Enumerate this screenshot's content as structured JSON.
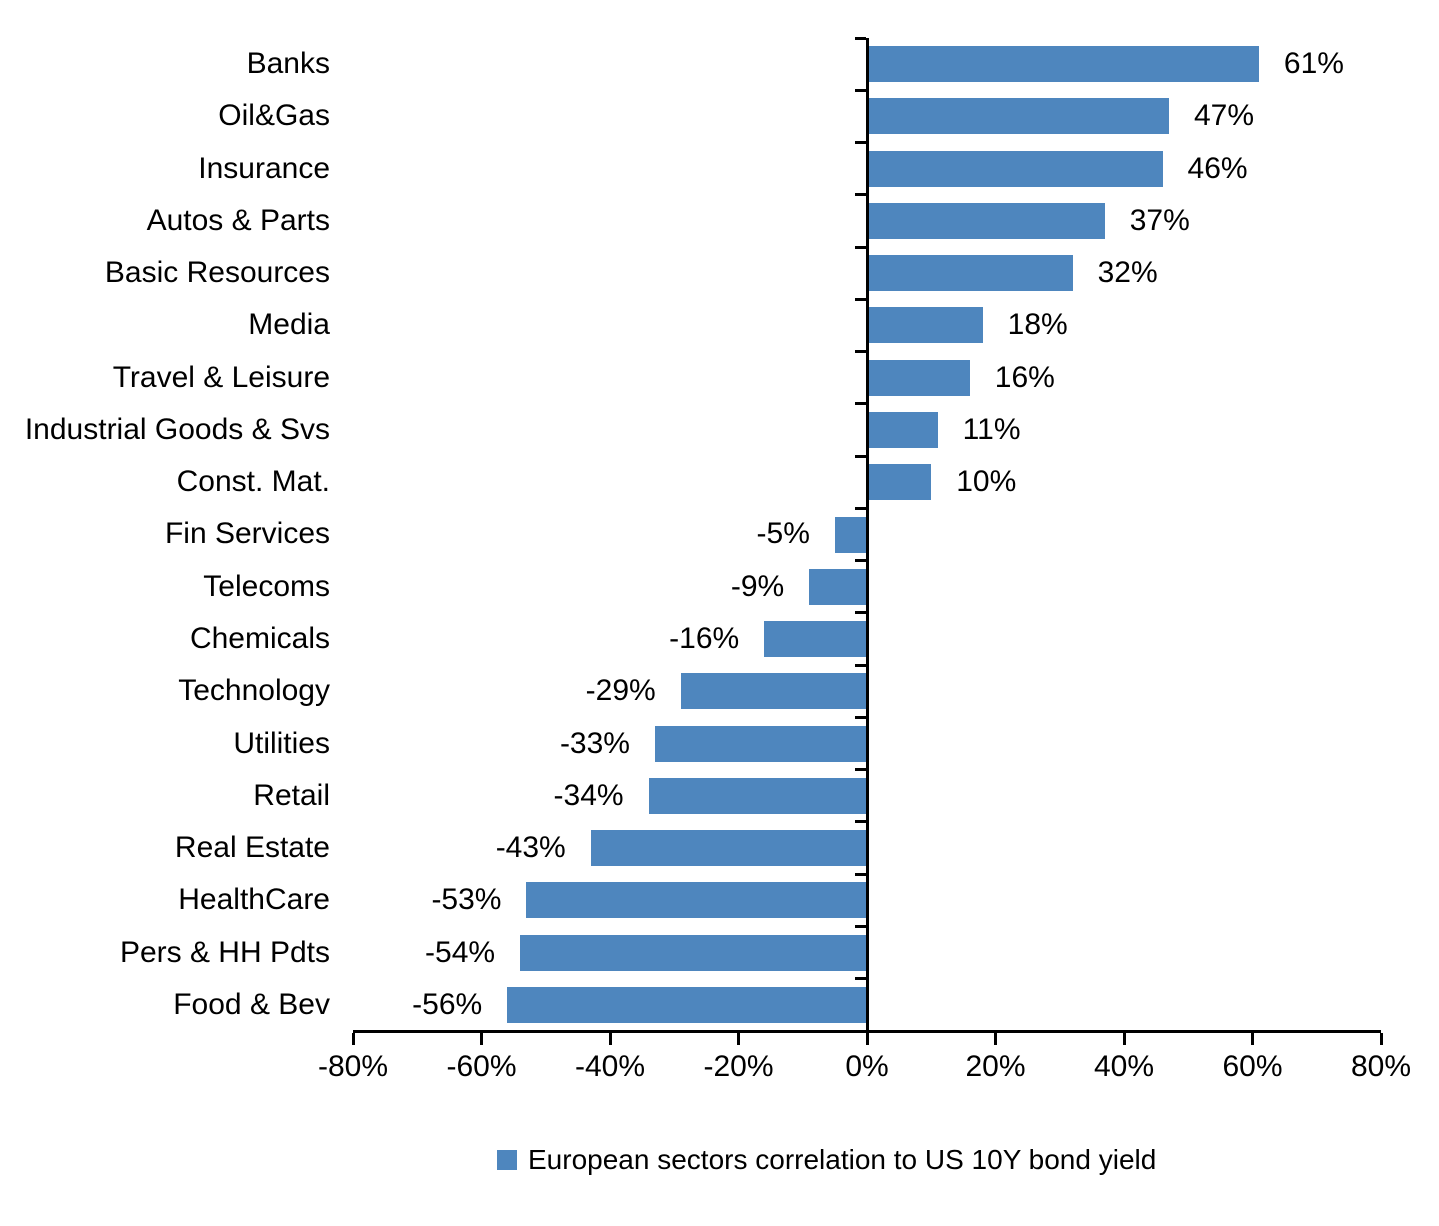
{
  "chart_data": {
    "type": "bar",
    "orientation": "horizontal",
    "title": "",
    "categories": [
      "Banks",
      "Oil&Gas",
      "Insurance",
      "Autos & Parts",
      "Basic Resources",
      "Media",
      "Travel & Leisure",
      "Industrial Goods & Svs",
      "Const. Mat.",
      "Fin Services",
      "Telecoms",
      "Chemicals",
      "Technology",
      "Utilities",
      "Retail",
      "Real Estate",
      "HealthCare",
      "Pers & HH Pdts",
      "Food & Bev"
    ],
    "values": [
      61,
      47,
      46,
      37,
      32,
      18,
      16,
      11,
      10,
      -5,
      -9,
      -16,
      -29,
      -33,
      -34,
      -43,
      -53,
      -54,
      -56
    ],
    "value_labels": [
      "61%",
      "47%",
      "46%",
      "37%",
      "32%",
      "18%",
      "16%",
      "11%",
      "10%",
      "-5%",
      "-9%",
      "-16%",
      "-29%",
      "-33%",
      "-34%",
      "-43%",
      "-53%",
      "-54%",
      "-56%"
    ],
    "x_axis": {
      "min": -80,
      "max": 80,
      "tick_step": 20,
      "tick_labels": [
        "-80%",
        "-60%",
        "-40%",
        "-20%",
        "0%",
        "20%",
        "40%",
        "60%",
        "80%"
      ]
    },
    "grid": false,
    "bar_color": "#4E86BE",
    "axis_color": "#000000",
    "legend_position": "bottom",
    "legend": [
      {
        "label": "European sectors correlation to US 10Y bond yield",
        "color": "#4E86BE"
      }
    ]
  }
}
